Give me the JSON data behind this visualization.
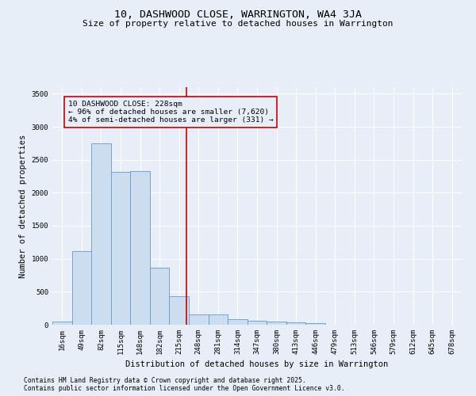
{
  "title": "10, DASHWOOD CLOSE, WARRINGTON, WA4 3JA",
  "subtitle": "Size of property relative to detached houses in Warrington",
  "xlabel": "Distribution of detached houses by size in Warrington",
  "ylabel": "Number of detached properties",
  "bar_labels": [
    "16sqm",
    "49sqm",
    "82sqm",
    "115sqm",
    "148sqm",
    "182sqm",
    "215sqm",
    "248sqm",
    "281sqm",
    "314sqm",
    "347sqm",
    "380sqm",
    "413sqm",
    "446sqm",
    "479sqm",
    "513sqm",
    "546sqm",
    "579sqm",
    "612sqm",
    "645sqm",
    "678sqm"
  ],
  "bar_values": [
    50,
    1120,
    2750,
    2320,
    2330,
    870,
    430,
    160,
    160,
    90,
    60,
    45,
    40,
    30,
    5,
    5,
    2,
    2,
    1,
    1,
    0
  ],
  "bar_color": "#ccddf0",
  "bar_edgecolor": "#6699cc",
  "background_color": "#e8eef8",
  "grid_color": "#ffffff",
  "vline_color": "#cc0000",
  "annotation_text": "10 DASHWOOD CLOSE: 228sqm\n← 96% of detached houses are smaller (7,620)\n4% of semi-detached houses are larger (331) →",
  "annotation_box_color": "#cc0000",
  "annotation_text_color": "#000000",
  "ylim": [
    0,
    3600
  ],
  "yticks": [
    0,
    500,
    1000,
    1500,
    2000,
    2500,
    3000,
    3500
  ],
  "footnote1": "Contains HM Land Registry data © Crown copyright and database right 2025.",
  "footnote2": "Contains public sector information licensed under the Open Government Licence v3.0.",
  "title_fontsize": 9.5,
  "subtitle_fontsize": 8,
  "axis_label_fontsize": 7.5,
  "tick_fontsize": 6.5,
  "annotation_fontsize": 6.8,
  "footnote_fontsize": 5.8
}
